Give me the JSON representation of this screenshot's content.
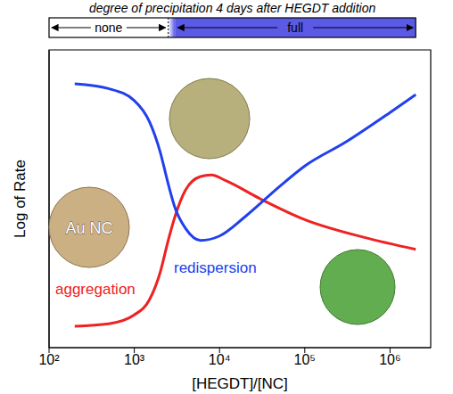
{
  "chart_data": {
    "type": "line",
    "x_label": "[HEGDT]/[NC]",
    "y_label": "Log of Rate",
    "log": "x",
    "tick_labels": "x",
    "xlim": [
      100,
      3000000
    ],
    "xticks": [
      {
        "value": 100,
        "label": "10²"
      },
      {
        "value": 1000,
        "label": "10³"
      },
      {
        "value": 10000,
        "label": "10⁴"
      },
      {
        "value": 100000,
        "label": "10⁵"
      },
      {
        "value": 1000000,
        "label": "10⁶"
      }
    ],
    "ylim": [
      0,
      10
    ],
    "series": [
      {
        "name": "aggregation",
        "color": "#ee2222",
        "x": [
          200,
          500,
          1000,
          1500,
          2000,
          2500,
          3000,
          4000,
          6000,
          8000,
          12000,
          30000,
          100000,
          500000,
          2000000
        ],
        "values": [
          0.72,
          0.8,
          1.1,
          1.6,
          2.5,
          3.6,
          4.4,
          5.3,
          5.75,
          5.8,
          5.6,
          5.0,
          4.3,
          3.7,
          3.3
        ]
      },
      {
        "name": "redispersion",
        "color": "#2040ee",
        "x": [
          200,
          500,
          1000,
          1500,
          2000,
          2500,
          3000,
          4000,
          6000,
          10000,
          20000,
          50000,
          100000,
          300000,
          1000000,
          2000000
        ],
        "values": [
          8.86,
          8.7,
          8.3,
          7.6,
          6.6,
          5.5,
          4.7,
          4.0,
          3.6,
          3.75,
          4.4,
          5.4,
          6.1,
          6.9,
          7.9,
          8.5
        ]
      }
    ],
    "annotations": [
      "Au NC"
    ],
    "precipitation_bar": {
      "title": "degree of precipitation 4 days after HEGDT addition",
      "regions": [
        {
          "label": "none",
          "from": 100,
          "to": 2500,
          "color": "#ffffff"
        },
        {
          "label": "full",
          "from": 3000,
          "to": 2000000,
          "color": "#5a5ae6"
        }
      ]
    }
  }
}
